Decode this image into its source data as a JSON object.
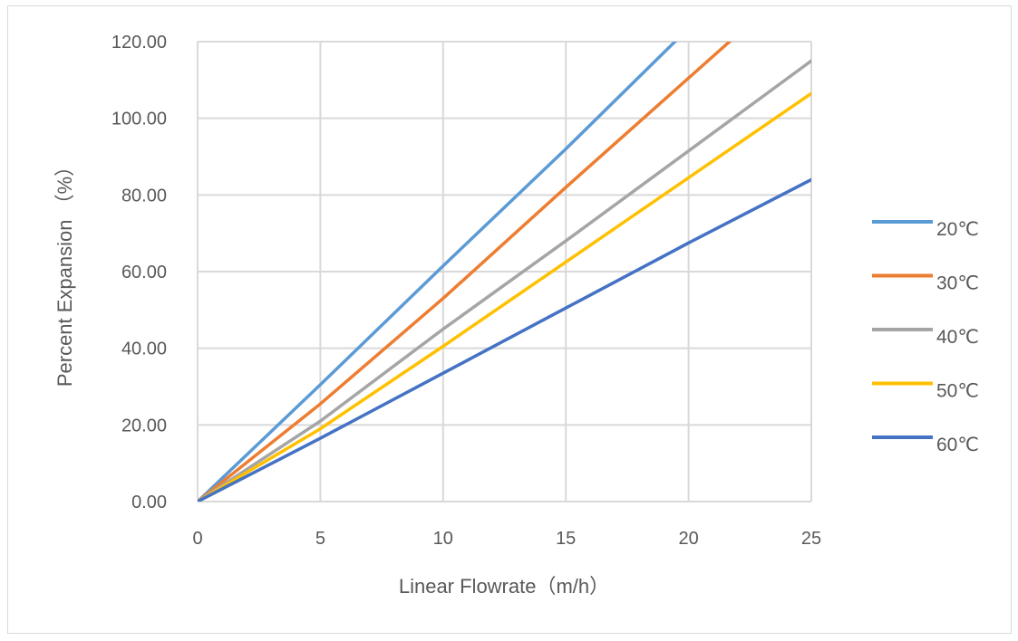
{
  "chart_data": {
    "type": "line",
    "title": "",
    "xlabel": "Linear Flowrate（m/h）",
    "ylabel": "Percent  Expansion （%）",
    "xlim": [
      0,
      25
    ],
    "ylim": [
      0,
      120
    ],
    "x_ticks": [
      "0",
      "5",
      "10",
      "15",
      "20",
      "25"
    ],
    "y_ticks": [
      "0.00",
      "20.00",
      "40.00",
      "60.00",
      "80.00",
      "100.00",
      "120.00"
    ],
    "grid": true,
    "legend_position": "right",
    "series": [
      {
        "name": "20℃",
        "color": "#5B9BD5",
        "x": [
          0,
          5,
          10,
          15,
          20,
          25
        ],
        "y": [
          0,
          30.5,
          61.5,
          92,
          123.5,
          155
        ]
      },
      {
        "name": "30℃",
        "color": "#ED7D31",
        "x": [
          0,
          5,
          10,
          15,
          20,
          25
        ],
        "y": [
          0,
          25.5,
          53,
          82,
          110.5,
          139
        ]
      },
      {
        "name": "40℃",
        "color": "#A5A5A5",
        "x": [
          0,
          5,
          10,
          15,
          20,
          25
        ],
        "y": [
          0,
          21,
          45,
          68,
          91.5,
          115
        ]
      },
      {
        "name": "50℃",
        "color": "#FFC000",
        "x": [
          0,
          5,
          10,
          15,
          20,
          25
        ],
        "y": [
          0,
          19,
          40.5,
          62.5,
          84.5,
          106.5
        ]
      },
      {
        "name": "60℃",
        "color": "#4472C4",
        "x": [
          0,
          5,
          10,
          15,
          20,
          25
        ],
        "y": [
          0,
          16.5,
          33.5,
          50.5,
          67.5,
          84
        ]
      }
    ]
  }
}
